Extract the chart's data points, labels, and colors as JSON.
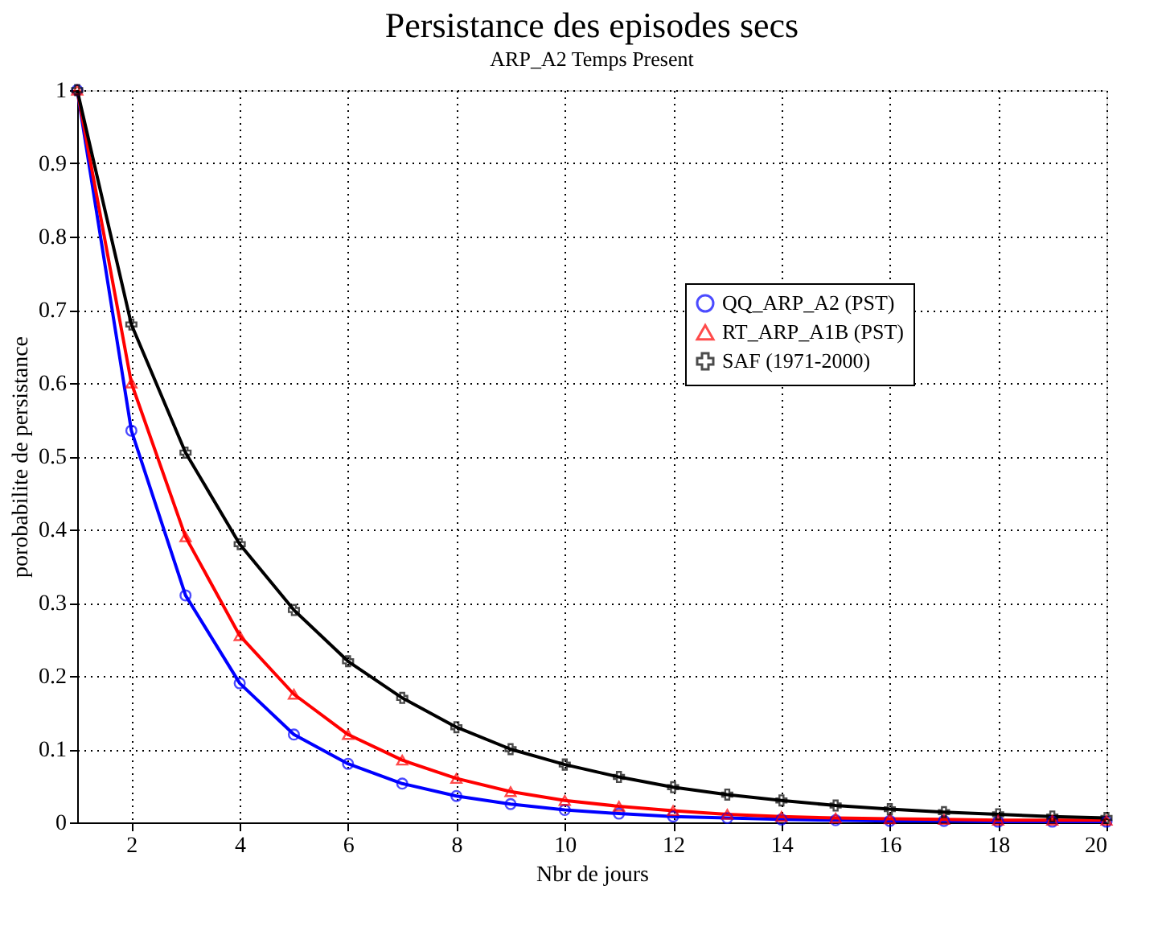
{
  "chart_data": {
    "type": "line",
    "title": "Persistance des episodes secs",
    "subtitle": "ARP_A2 Temps Present",
    "xlabel": "Nbr de jours",
    "ylabel": "porobabilite de persistance",
    "x": [
      1,
      2,
      3,
      4,
      5,
      6,
      7,
      8,
      9,
      10,
      11,
      12,
      13,
      14,
      15,
      16,
      17,
      18,
      19,
      20
    ],
    "series": [
      {
        "name": "QQ_ARP_A2 (PST)",
        "color": "#0000ff",
        "marker": "circle",
        "values": [
          1,
          0.535,
          0.31,
          0.19,
          0.12,
          0.08,
          0.053,
          0.036,
          0.025,
          0.017,
          0.012,
          0.008,
          0.006,
          0.004,
          0.003,
          0.002,
          0.002,
          0.001,
          0.001,
          0.001
        ]
      },
      {
        "name": "RT_ARP_A1B (PST)",
        "color": "#ff0000",
        "marker": "triangle",
        "values": [
          1,
          0.6,
          0.39,
          0.255,
          0.175,
          0.12,
          0.085,
          0.06,
          0.042,
          0.03,
          0.022,
          0.016,
          0.011,
          0.008,
          0.006,
          0.005,
          0.004,
          0.003,
          0.003,
          0.003
        ]
      },
      {
        "name": "SAF (1971-2000)",
        "color": "#000000",
        "marker": "cross",
        "values": [
          1,
          0.68,
          0.505,
          0.38,
          0.29,
          0.22,
          0.17,
          0.13,
          0.1,
          0.079,
          0.062,
          0.048,
          0.038,
          0.03,
          0.023,
          0.018,
          0.014,
          0.011,
          0.008,
          0.006
        ]
      }
    ],
    "xlim": [
      1,
      20
    ],
    "xticks": [
      2,
      4,
      6,
      8,
      10,
      12,
      14,
      16,
      18,
      20
    ],
    "ylim": [
      0,
      1
    ],
    "yticks": [
      0,
      0.1,
      0.2,
      0.3,
      0.4,
      0.5,
      0.6,
      0.7,
      0.8,
      0.9,
      1
    ],
    "grid": true,
    "legend": "top right",
    "line_style": "solid"
  }
}
